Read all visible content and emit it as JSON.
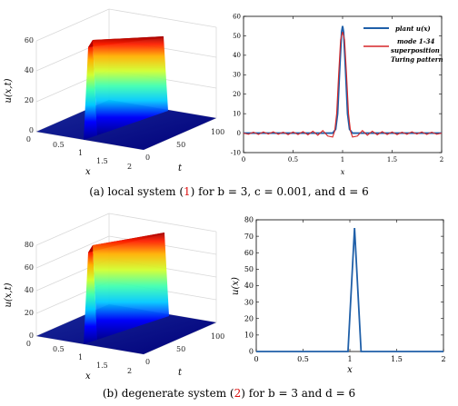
{
  "captions": {
    "a": {
      "prefix": "(a) local system (",
      "ref": "1",
      "suffix": ") for b = 3, c = 0.001, and d = 6"
    },
    "b": {
      "prefix": "(b) degenerate system (",
      "ref": "2",
      "suffix": ") for b = 3 and d = 6"
    }
  },
  "chart_data": [
    {
      "id": "a-surface",
      "type": "surface",
      "colormap": "jet",
      "zlabel": "u(x,t)",
      "xlabel": "x",
      "ylabel": "t",
      "zticks": [
        "0",
        "20",
        "40",
        "60"
      ],
      "xticks": [
        "0.5",
        "1",
        "1.5",
        "2"
      ],
      "yticks": [
        "0",
        "50",
        "100"
      ],
      "zmax": 60,
      "ridge_x": 1.0,
      "peak": 55
    },
    {
      "id": "a-line",
      "type": "line",
      "xlabel": "x",
      "ylabel": "",
      "xlim": [
        0,
        2
      ],
      "ylim": [
        -10,
        60
      ],
      "xticks": [
        "0",
        "0.5",
        "1",
        "1.5",
        "2"
      ],
      "yticks": [
        "-10",
        "0",
        "10",
        "20",
        "30",
        "40",
        "50",
        "60"
      ],
      "legend": [
        {
          "name": "plant u(x)",
          "color": "#1f5fa8"
        },
        {
          "name": "mode 1-34",
          "color": "#d62728"
        },
        {
          "name": "superposition",
          "color": ""
        },
        {
          "name": "Turing pattern",
          "color": ""
        }
      ],
      "series": [
        {
          "name": "plant u(x)",
          "color": "#1f5fa8",
          "x": [
            0,
            0.1,
            0.2,
            0.3,
            0.4,
            0.5,
            0.6,
            0.7,
            0.8,
            0.85,
            0.9,
            0.93,
            0.95,
            0.97,
            0.99,
            1.0,
            1.01,
            1.03,
            1.05,
            1.07,
            1.1,
            1.15,
            1.2,
            1.3,
            1.4,
            1.5,
            1.6,
            1.7,
            1.8,
            1.9,
            2.0
          ],
          "y": [
            0,
            0,
            0,
            0,
            0,
            0,
            0,
            0,
            0,
            0,
            0,
            2,
            10,
            32,
            52,
            55,
            52,
            32,
            10,
            2,
            0,
            0,
            0,
            0,
            0,
            0,
            0,
            0,
            0,
            0,
            0
          ]
        },
        {
          "name": "mode 1-34",
          "color": "#d62728",
          "x": [
            0,
            0.05,
            0.1,
            0.15,
            0.2,
            0.25,
            0.3,
            0.35,
            0.4,
            0.45,
            0.5,
            0.55,
            0.6,
            0.65,
            0.7,
            0.75,
            0.8,
            0.85,
            0.9,
            0.92,
            0.94,
            0.96,
            0.98,
            1.0,
            1.02,
            1.04,
            1.06,
            1.08,
            1.1,
            1.15,
            1.2,
            1.25,
            1.3,
            1.35,
            1.4,
            1.45,
            1.5,
            1.55,
            1.6,
            1.65,
            1.7,
            1.75,
            1.8,
            1.85,
            1.9,
            1.95,
            2.0
          ],
          "y": [
            0,
            -0.6,
            0.5,
            -0.7,
            0.6,
            -0.5,
            0.7,
            -0.6,
            0.5,
            -0.8,
            0.6,
            -0.7,
            0.8,
            -0.9,
            1.0,
            -1.1,
            1.3,
            -1.5,
            -2.0,
            1.0,
            10,
            30,
            48,
            52,
            48,
            30,
            10,
            1.0,
            -2.0,
            -1.5,
            1.3,
            -1.1,
            1.0,
            -0.9,
            0.8,
            -0.7,
            0.6,
            -0.8,
            0.5,
            -0.6,
            0.7,
            -0.5,
            0.6,
            -0.7,
            0.5,
            -0.6,
            0
          ]
        }
      ]
    },
    {
      "id": "b-surface",
      "type": "surface",
      "colormap": "jet",
      "zlabel": "u(x,t)",
      "xlabel": "x",
      "ylabel": "t",
      "zticks": [
        "0",
        "20",
        "40",
        "60",
        "80"
      ],
      "xticks": [
        "0.5",
        "1",
        "1.5",
        "2"
      ],
      "yticks": [
        "0",
        "50",
        "100"
      ],
      "zmax": 80,
      "ridge_x": 1.05,
      "peak": 75
    },
    {
      "id": "b-line",
      "type": "line",
      "xlabel": "x",
      "ylabel": "u(x)",
      "xlim": [
        0,
        2
      ],
      "ylim": [
        0,
        80
      ],
      "xticks": [
        "0",
        "0.5",
        "1",
        "1.5",
        "2"
      ],
      "yticks": [
        "0",
        "10",
        "20",
        "30",
        "40",
        "50",
        "60",
        "70",
        "80"
      ],
      "series": [
        {
          "name": "",
          "color": "#1f5fa8",
          "x": [
            0,
            0.98,
            1.05,
            1.12,
            2.0
          ],
          "y": [
            0,
            0,
            75,
            0,
            0
          ]
        }
      ]
    }
  ]
}
